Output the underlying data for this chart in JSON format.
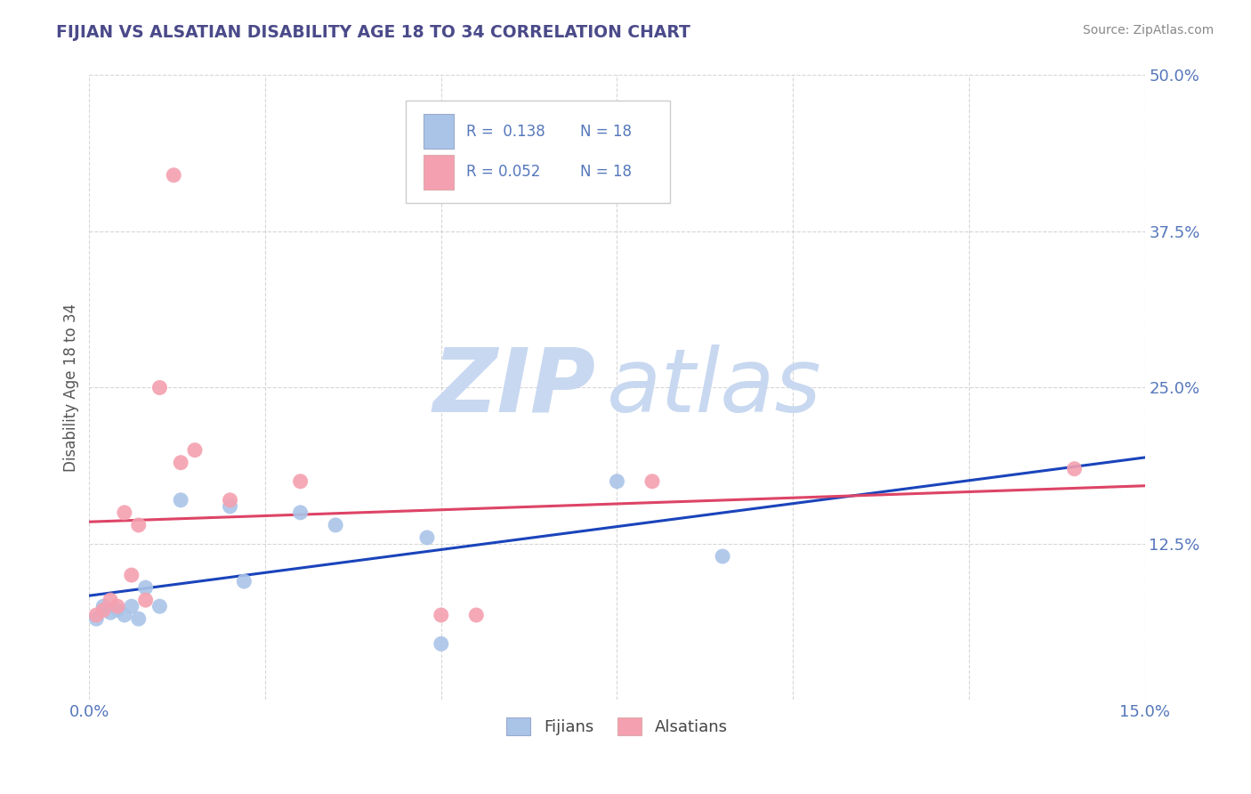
{
  "title": "FIJIAN VS ALSATIAN DISABILITY AGE 18 TO 34 CORRELATION CHART",
  "title_color": "#4a4a8a",
  "source_text": "Source: ZipAtlas.com",
  "ylabel": "Disability Age 18 to 34",
  "xlim": [
    0.0,
    0.15
  ],
  "ylim": [
    0.0,
    0.5
  ],
  "xticks": [
    0.0,
    0.025,
    0.05,
    0.075,
    0.1,
    0.125,
    0.15
  ],
  "xticklabels": [
    "0.0%",
    "",
    "",
    "",
    "",
    "",
    "15.0%"
  ],
  "yticks": [
    0.0,
    0.125,
    0.25,
    0.375,
    0.5
  ],
  "yticklabels": [
    "",
    "12.5%",
    "25.0%",
    "37.5%",
    "50.0%"
  ],
  "fijian_color": "#aac4e8",
  "alsatian_color": "#f4a0b0",
  "fijian_line_color": "#1a44bb",
  "alsatian_line_color": "#dd4466",
  "fijian_R": 0.138,
  "fijian_N": 18,
  "alsatian_R": 0.052,
  "alsatian_N": 18,
  "background_color": "#ffffff",
  "grid_color": "#cccccc",
  "watermark_zip": "ZIP",
  "watermark_atlas": "atlas",
  "watermark_color": "#c8d8f0",
  "axis_color": "#5577bb",
  "fijian_x": [
    0.001,
    0.002,
    0.003,
    0.004,
    0.005,
    0.006,
    0.007,
    0.008,
    0.01,
    0.013,
    0.02,
    0.022,
    0.03,
    0.035,
    0.048,
    0.05,
    0.075,
    0.09
  ],
  "fijian_y": [
    0.065,
    0.075,
    0.07,
    0.072,
    0.068,
    0.075,
    0.065,
    0.09,
    0.075,
    0.16,
    0.155,
    0.095,
    0.15,
    0.14,
    0.13,
    0.045,
    0.175,
    0.115
  ],
  "alsatian_x": [
    0.001,
    0.002,
    0.003,
    0.004,
    0.005,
    0.006,
    0.007,
    0.008,
    0.01,
    0.012,
    0.013,
    0.015,
    0.02,
    0.03,
    0.05,
    0.055,
    0.08,
    0.14
  ],
  "alsatian_y": [
    0.068,
    0.072,
    0.08,
    0.075,
    0.15,
    0.1,
    0.14,
    0.08,
    0.25,
    0.42,
    0.19,
    0.2,
    0.16,
    0.175,
    0.068,
    0.068,
    0.175,
    0.185
  ]
}
